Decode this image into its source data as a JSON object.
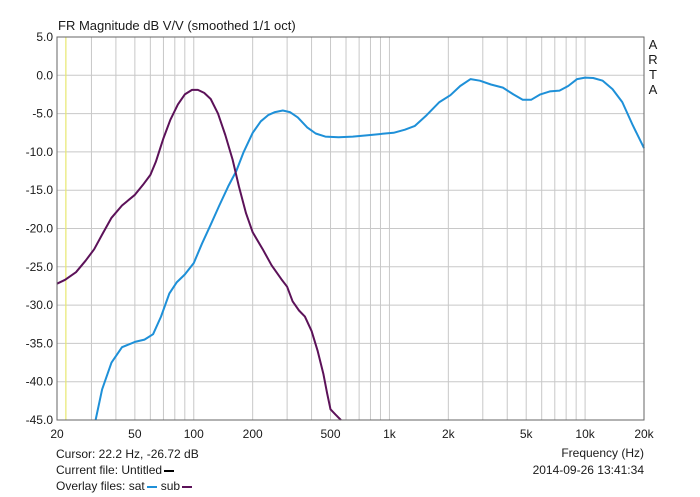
{
  "chart_data": {
    "type": "line",
    "title": "FR Magnitude dB V/V (smoothed 1/1 oct)",
    "brand_letters": [
      "A",
      "R",
      "T",
      "A"
    ],
    "xlabel": "Frequency (Hz)",
    "ylabel": "",
    "x_scale": "log",
    "xlim": [
      20,
      20000
    ],
    "ylim": [
      -45,
      5
    ],
    "grid": true,
    "x_tick_labels": [
      {
        "value": 20,
        "label": "20"
      },
      {
        "value": 50,
        "label": "50"
      },
      {
        "value": 100,
        "label": "100"
      },
      {
        "value": 200,
        "label": "200"
      },
      {
        "value": 500,
        "label": "500"
      },
      {
        "value": 1000,
        "label": "1k"
      },
      {
        "value": 2000,
        "label": "2k"
      },
      {
        "value": 5000,
        "label": "5k"
      },
      {
        "value": 10000,
        "label": "10k"
      },
      {
        "value": 20000,
        "label": "20k"
      }
    ],
    "y_tick_labels": [
      {
        "value": 5,
        "label": "5.0"
      },
      {
        "value": 0,
        "label": "0.0"
      },
      {
        "value": -5,
        "label": "-5.0"
      },
      {
        "value": -10,
        "label": "-10.0"
      },
      {
        "value": -15,
        "label": "-15.0"
      },
      {
        "value": -20,
        "label": "-20.0"
      },
      {
        "value": -25,
        "label": "-25.0"
      },
      {
        "value": -30,
        "label": "-30.0"
      },
      {
        "value": -35,
        "label": "-35.0"
      },
      {
        "value": -40,
        "label": "-40.0"
      },
      {
        "value": -45,
        "label": "-45.0"
      }
    ],
    "cursor_frequency": 22.2,
    "series": [
      {
        "name": "sat",
        "color": "#1e90d8",
        "points": [
          [
            31.5,
            -45
          ],
          [
            34,
            -41
          ],
          [
            38,
            -37.5
          ],
          [
            43,
            -35.5
          ],
          [
            50,
            -34.8
          ],
          [
            56,
            -34.5
          ],
          [
            62,
            -33.8
          ],
          [
            68,
            -31.5
          ],
          [
            75,
            -28.5
          ],
          [
            82,
            -27
          ],
          [
            90,
            -26
          ],
          [
            100,
            -24.5
          ],
          [
            110,
            -22
          ],
          [
            122,
            -19.5
          ],
          [
            135,
            -17
          ],
          [
            150,
            -14.5
          ],
          [
            165,
            -12.5
          ],
          [
            180,
            -10
          ],
          [
            200,
            -7.5
          ],
          [
            220,
            -6
          ],
          [
            240,
            -5.2
          ],
          [
            260,
            -4.8
          ],
          [
            285,
            -4.6
          ],
          [
            310,
            -4.8
          ],
          [
            340,
            -5.5
          ],
          [
            380,
            -6.8
          ],
          [
            420,
            -7.6
          ],
          [
            470,
            -8
          ],
          [
            550,
            -8.1
          ],
          [
            650,
            -8
          ],
          [
            800,
            -7.8
          ],
          [
            950,
            -7.6
          ],
          [
            1050,
            -7.5
          ],
          [
            1200,
            -7.1
          ],
          [
            1350,
            -6.6
          ],
          [
            1550,
            -5.2
          ],
          [
            1800,
            -3.5
          ],
          [
            2050,
            -2.6
          ],
          [
            2300,
            -1.4
          ],
          [
            2600,
            -0.5
          ],
          [
            2900,
            -0.7
          ],
          [
            3300,
            -1.2
          ],
          [
            3800,
            -1.6
          ],
          [
            4300,
            -2.5
          ],
          [
            4800,
            -3.2
          ],
          [
            5300,
            -3.2
          ],
          [
            5900,
            -2.5
          ],
          [
            6600,
            -2.1
          ],
          [
            7400,
            -2
          ],
          [
            8200,
            -1.4
          ],
          [
            9100,
            -0.5
          ],
          [
            10000,
            -0.3
          ],
          [
            11000,
            -0.35
          ],
          [
            12300,
            -0.7
          ],
          [
            13800,
            -1.8
          ],
          [
            15500,
            -3.5
          ],
          [
            17500,
            -6.5
          ],
          [
            20000,
            -9.5
          ]
        ]
      },
      {
        "name": "sub",
        "color": "#5c1259",
        "points": [
          [
            20,
            -27.2
          ],
          [
            22,
            -26.7
          ],
          [
            25,
            -25.7
          ],
          [
            28,
            -24.2
          ],
          [
            31,
            -22.7
          ],
          [
            34,
            -20.8
          ],
          [
            38,
            -18.6
          ],
          [
            43,
            -17
          ],
          [
            50,
            -15.6
          ],
          [
            55,
            -14.3
          ],
          [
            60,
            -13
          ],
          [
            64,
            -11.3
          ],
          [
            70,
            -8.2
          ],
          [
            76,
            -5.8
          ],
          [
            83,
            -3.8
          ],
          [
            90,
            -2.5
          ],
          [
            98,
            -1.9
          ],
          [
            105,
            -1.9
          ],
          [
            113,
            -2.3
          ],
          [
            122,
            -3.1
          ],
          [
            133,
            -5
          ],
          [
            145,
            -7.8
          ],
          [
            158,
            -11
          ],
          [
            170,
            -14.5
          ],
          [
            185,
            -18
          ],
          [
            200,
            -20.5
          ],
          [
            225,
            -22.7
          ],
          [
            250,
            -24.8
          ],
          [
            280,
            -26.6
          ],
          [
            300,
            -27.6
          ],
          [
            320,
            -29.5
          ],
          [
            345,
            -30.7
          ],
          [
            370,
            -31.5
          ],
          [
            400,
            -33.4
          ],
          [
            430,
            -36
          ],
          [
            460,
            -39
          ],
          [
            480,
            -41.5
          ],
          [
            500,
            -43.6
          ],
          [
            530,
            -44.3
          ],
          [
            565,
            -45
          ]
        ]
      }
    ]
  },
  "info": {
    "cursor_text": "Cursor: 22.2 Hz, -26.72 dB",
    "current_file_label": "Current file: Untitled",
    "overlay_label": "Overlay files:",
    "overlay_sat": "sat",
    "overlay_sub": "sub",
    "timestamp": "2014-09-26  13:41:34"
  },
  "colors": {
    "current_file": "#000000",
    "grid": "#c8c8c8",
    "cursor_line": "#e8e870"
  }
}
